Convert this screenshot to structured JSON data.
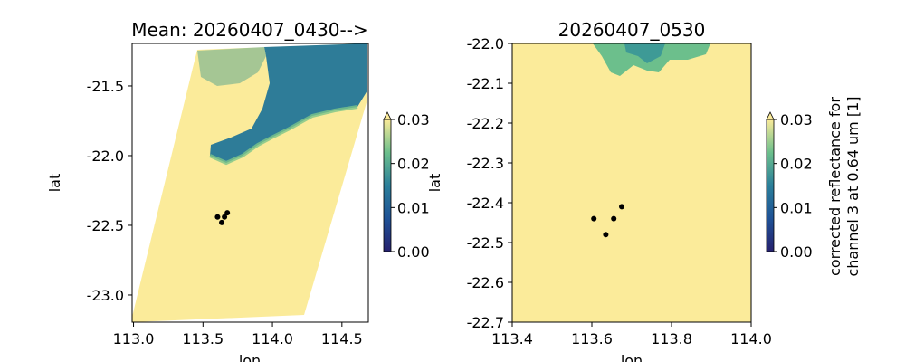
{
  "chart_data": [
    {
      "type": "heatmap",
      "title": "Mean: 20260407_0430-->",
      "xlabel": "lon",
      "ylabel": "lat",
      "xlim": [
        112.99,
        114.69
      ],
      "ylim": [
        -23.195,
        -21.195
      ],
      "xticks": [
        "113.0",
        "113.5",
        "114.0",
        "114.5"
      ],
      "xtick_values": [
        113.0,
        113.5,
        114.0,
        114.5
      ],
      "yticks": [
        "-21.5",
        "-22.0",
        "-22.5",
        "-23.0"
      ],
      "ytick_values": [
        -21.5,
        -22.0,
        -22.5,
        -23.0
      ],
      "points": [
        [
          113.605,
          -22.44
        ],
        [
          113.655,
          -22.44
        ],
        [
          113.675,
          -22.41
        ],
        [
          113.635,
          -22.48
        ]
      ],
      "colorbar": {
        "ticks": [
          "0.00",
          "0.01",
          "0.02",
          "0.03"
        ],
        "tick_values": [
          0,
          0.01,
          0.02,
          0.03
        ],
        "range": [
          0,
          0.03
        ],
        "extend": "max"
      }
    },
    {
      "type": "heatmap",
      "title": "20260407_0530",
      "xlabel": "lon",
      "ylabel": "lat",
      "xlim": [
        113.4,
        114.0
      ],
      "ylim": [
        -22.7,
        -22.0
      ],
      "xticks": [
        "113.4",
        "113.6",
        "113.8",
        "114.0"
      ],
      "xtick_values": [
        113.4,
        113.6,
        113.8,
        114.0
      ],
      "yticks": [
        "-22.0",
        "-22.1",
        "-22.2",
        "-22.3",
        "-22.4",
        "-22.5",
        "-22.6",
        "-22.7"
      ],
      "ytick_values": [
        -22.0,
        -22.1,
        -22.2,
        -22.3,
        -22.4,
        -22.5,
        -22.6,
        -22.7
      ],
      "points": [
        [
          113.605,
          -22.44
        ],
        [
          113.655,
          -22.44
        ],
        [
          113.675,
          -22.41
        ],
        [
          113.635,
          -22.48
        ]
      ],
      "colorbar": {
        "ticks": [
          "0.00",
          "0.01",
          "0.02",
          "0.03"
        ],
        "tick_values": [
          0,
          0.01,
          0.02,
          0.03
        ],
        "range": [
          0,
          0.03
        ],
        "extend": "max",
        "label_line1": "corrected reflectance for",
        "label_line2": "channel 3 at 0.64 um [1]"
      }
    }
  ],
  "colors": {
    "high": "#fbeb9a",
    "mid": "#6cbf8c",
    "low": "#2b7b9b",
    "min": "#26216e"
  }
}
